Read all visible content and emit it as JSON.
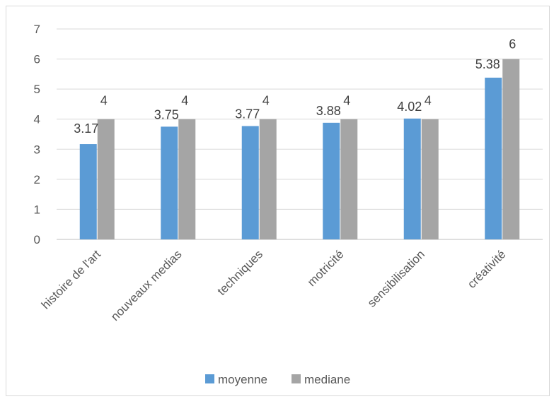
{
  "chart_data": {
    "type": "bar",
    "categories": [
      "histoire de l'art",
      "nouveaux medias",
      "techniques",
      "motricité",
      "sensibilisation",
      "créativité"
    ],
    "series": [
      {
        "name": "moyenne",
        "values": [
          3.17,
          3.75,
          3.77,
          3.88,
          4.02,
          5.38
        ],
        "labels": [
          "3.17",
          "3.75",
          "3.77",
          "3.88",
          "4.02",
          "5.38"
        ],
        "color": "#5b9bd5"
      },
      {
        "name": "mediane",
        "values": [
          4,
          4,
          4,
          4,
          4,
          6
        ],
        "labels": [
          "4",
          "4",
          "4",
          "4",
          "4",
          "6"
        ],
        "color": "#a5a5a5"
      }
    ],
    "ylim": [
      0,
      7
    ],
    "yticks": [
      "0",
      "1",
      "2",
      "3",
      "4",
      "5",
      "6",
      "7"
    ],
    "grid": true,
    "legend_position": "bottom"
  }
}
